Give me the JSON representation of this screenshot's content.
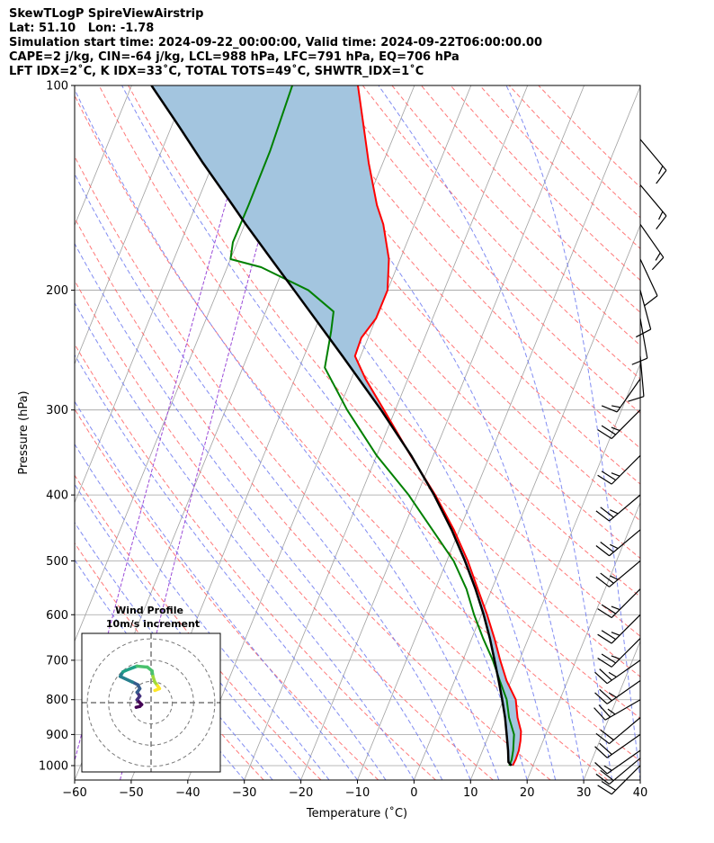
{
  "header": {
    "line1": "SkewTLogP SpireViewAirstrip",
    "line2": "Lat: 51.10   Lon: -1.78",
    "line3": "Simulation start time: 2024-09-22_00:00:00, Valid time: 2024-09-22T06:00:00.00",
    "line4": "CAPE=2 j/kg, CIN=-64 j/kg, LCL=988 hPa, LFC=791 hPa, EQ=706 hPa",
    "line5": "LFT IDX=2˚C, K IDX=33˚C, TOTAL TOTS=49˚C, SHWTR_IDX=1˚C"
  },
  "chart_data": {
    "type": "skewt",
    "xlabel": "Temperature (˚C)",
    "ylabel": "Pressure (hPa)",
    "xlim": [
      -60,
      40
    ],
    "ylim": [
      1050,
      100
    ],
    "x_ticks": [
      "−60",
      "−50",
      "−40",
      "−30",
      "−20",
      "−10",
      "0",
      "10",
      "20",
      "30",
      "40"
    ],
    "y_ticks": [
      {
        "p": 100,
        "label": "100"
      },
      {
        "p": 200,
        "label": "200"
      },
      {
        "p": 300,
        "label": "300"
      },
      {
        "p": 400,
        "label": "400"
      },
      {
        "p": 500,
        "label": "500"
      },
      {
        "p": 600,
        "label": "600"
      },
      {
        "p": 700,
        "label": "700"
      },
      {
        "p": 800,
        "label": "800"
      },
      {
        "p": 900,
        "label": "900"
      },
      {
        "p": 1000,
        "label": "1000"
      }
    ],
    "colors": {
      "temperature": "#ff0000",
      "dewpoint": "#008000",
      "parcel": "#000000",
      "cape_fill": "#a3c5df",
      "isotherm": "#a0a0a0",
      "dry_adiabat": "#ff6060",
      "moist_adiabat": "#6b78f0",
      "mixing_ratio": "#9b4ad8"
    },
    "temperature": [
      {
        "p": 1000,
        "t": 16.4
      },
      {
        "p": 980,
        "t": 16.5
      },
      {
        "p": 950,
        "t": 16.4
      },
      {
        "p": 920,
        "t": 16.0
      },
      {
        "p": 890,
        "t": 15.4
      },
      {
        "p": 850,
        "t": 13.8
      },
      {
        "p": 800,
        "t": 12.2
      },
      {
        "p": 750,
        "t": 9.2
      },
      {
        "p": 700,
        "t": 6.6
      },
      {
        "p": 650,
        "t": 4.0
      },
      {
        "p": 600,
        "t": 1.0
      },
      {
        "p": 550,
        "t": -2.5
      },
      {
        "p": 500,
        "t": -6.3
      },
      {
        "p": 450,
        "t": -11.0
      },
      {
        "p": 400,
        "t": -16.8
      },
      {
        "p": 350,
        "t": -24.0
      },
      {
        "p": 300,
        "t": -32.0
      },
      {
        "p": 270,
        "t": -37.5
      },
      {
        "p": 250,
        "t": -41.0
      },
      {
        "p": 235,
        "t": -41.2
      },
      {
        "p": 220,
        "t": -40.0
      },
      {
        "p": 200,
        "t": -40.0
      },
      {
        "p": 180,
        "t": -42.0
      },
      {
        "p": 160,
        "t": -45.5
      },
      {
        "p": 150,
        "t": -48.0
      },
      {
        "p": 130,
        "t": -52.5
      },
      {
        "p": 115,
        "t": -56.0
      },
      {
        "p": 100,
        "t": -60.0
      }
    ],
    "dewpoint": [
      {
        "p": 1000,
        "t": 15.8
      },
      {
        "p": 980,
        "t": 15.8
      },
      {
        "p": 950,
        "t": 15.4
      },
      {
        "p": 900,
        "t": 14.4
      },
      {
        "p": 850,
        "t": 12.3
      },
      {
        "p": 800,
        "t": 10.6
      },
      {
        "p": 750,
        "t": 8.0
      },
      {
        "p": 700,
        "t": 5.3
      },
      {
        "p": 650,
        "t": 2.0
      },
      {
        "p": 600,
        "t": -1.3
      },
      {
        "p": 550,
        "t": -4.5
      },
      {
        "p": 500,
        "t": -8.8
      },
      {
        "p": 450,
        "t": -14.8
      },
      {
        "p": 400,
        "t": -21.5
      },
      {
        "p": 350,
        "t": -30.0
      },
      {
        "p": 300,
        "t": -38.5
      },
      {
        "p": 260,
        "t": -45.5
      },
      {
        "p": 230,
        "t": -47.0
      },
      {
        "p": 215,
        "t": -48.0
      },
      {
        "p": 200,
        "t": -54.0
      },
      {
        "p": 185,
        "t": -64.0
      },
      {
        "p": 180,
        "t": -70.0
      },
      {
        "p": 170,
        "t": -70.8
      },
      {
        "p": 150,
        "t": -70.7
      },
      {
        "p": 125,
        "t": -70.8
      },
      {
        "p": 100,
        "t": -71.6
      }
    ],
    "parcel": [
      {
        "p": 1000,
        "t": 16.2
      },
      {
        "p": 988,
        "t": 15.4
      },
      {
        "p": 950,
        "t": 14.5
      },
      {
        "p": 900,
        "t": 13.1
      },
      {
        "p": 850,
        "t": 11.6
      },
      {
        "p": 800,
        "t": 9.8
      },
      {
        "p": 750,
        "t": 7.8
      },
      {
        "p": 700,
        "t": 5.6
      },
      {
        "p": 650,
        "t": 3.2
      },
      {
        "p": 600,
        "t": 0.4
      },
      {
        "p": 550,
        "t": -2.9
      },
      {
        "p": 500,
        "t": -6.8
      },
      {
        "p": 450,
        "t": -11.4
      },
      {
        "p": 400,
        "t": -17.0
      },
      {
        "p": 350,
        "t": -23.9
      },
      {
        "p": 300,
        "t": -32.5
      },
      {
        "p": 250,
        "t": -43.2
      },
      {
        "p": 200,
        "t": -56.5
      },
      {
        "p": 180,
        "t": -62.8
      },
      {
        "p": 160,
        "t": -69.8
      },
      {
        "p": 150,
        "t": -73.5
      },
      {
        "p": 130,
        "t": -81.8
      },
      {
        "p": 115,
        "t": -88.6
      },
      {
        "p": 100,
        "t": -96.5
      }
    ],
    "wind_barbs": [
      {
        "p": 1000,
        "speed": 20,
        "dir": 225
      },
      {
        "p": 975,
        "speed": 20,
        "dir": 230
      },
      {
        "p": 950,
        "speed": 15,
        "dir": 235
      },
      {
        "p": 900,
        "speed": 20,
        "dir": 235
      },
      {
        "p": 850,
        "speed": 20,
        "dir": 230
      },
      {
        "p": 800,
        "speed": 25,
        "dir": 240
      },
      {
        "p": 750,
        "speed": 25,
        "dir": 235
      },
      {
        "p": 700,
        "speed": 25,
        "dir": 235
      },
      {
        "p": 650,
        "speed": 25,
        "dir": 225
      },
      {
        "p": 600,
        "speed": 25,
        "dir": 225
      },
      {
        "p": 550,
        "speed": 25,
        "dir": 225
      },
      {
        "p": 500,
        "speed": 25,
        "dir": 230
      },
      {
        "p": 450,
        "speed": 25,
        "dir": 230
      },
      {
        "p": 400,
        "speed": 25,
        "dir": 230
      },
      {
        "p": 350,
        "speed": 25,
        "dir": 225
      },
      {
        "p": 300,
        "speed": 25,
        "dir": 225
      },
      {
        "p": 270,
        "speed": 15,
        "dir": 215
      },
      {
        "p": 250,
        "speed": 10,
        "dir": 175
      },
      {
        "p": 220,
        "speed": 10,
        "dir": 170
      },
      {
        "p": 200,
        "speed": 10,
        "dir": 165
      },
      {
        "p": 180,
        "speed": 10,
        "dir": 155
      },
      {
        "p": 160,
        "speed": 15,
        "dir": 145
      },
      {
        "p": 140,
        "speed": 15,
        "dir": 140
      },
      {
        "p": 120,
        "speed": 15,
        "dir": 140
      }
    ],
    "hodograph": {
      "title": "Wind Profile",
      "subtitle": "10m/s increment",
      "ring_increment": 10,
      "points": [
        {
          "u": -3.2,
          "v": -1.0
        },
        {
          "u": -2.4,
          "v": -0.8
        },
        {
          "u": -2.0,
          "v": -0.4
        },
        {
          "u": -3.0,
          "v": 0.6
        },
        {
          "u": -2.4,
          "v": 1.4
        },
        {
          "u": -3.0,
          "v": 2.2
        },
        {
          "u": -2.4,
          "v": 3.0
        },
        {
          "u": -2.8,
          "v": 3.8
        },
        {
          "u": -4.0,
          "v": 4.4
        },
        {
          "u": -6.6,
          "v": 5.6
        },
        {
          "u": -6.0,
          "v": 6.6
        },
        {
          "u": -4.6,
          "v": 7.2
        },
        {
          "u": -3.0,
          "v": 7.8
        },
        {
          "u": -0.8,
          "v": 7.6
        },
        {
          "u": 0.2,
          "v": 6.8
        },
        {
          "u": 0.4,
          "v": 5.6
        },
        {
          "u": 0.8,
          "v": 4.4
        },
        {
          "u": 1.4,
          "v": 3.6
        },
        {
          "u": 1.8,
          "v": 3.0
        },
        {
          "u": 0.8,
          "v": 2.6
        }
      ]
    }
  }
}
